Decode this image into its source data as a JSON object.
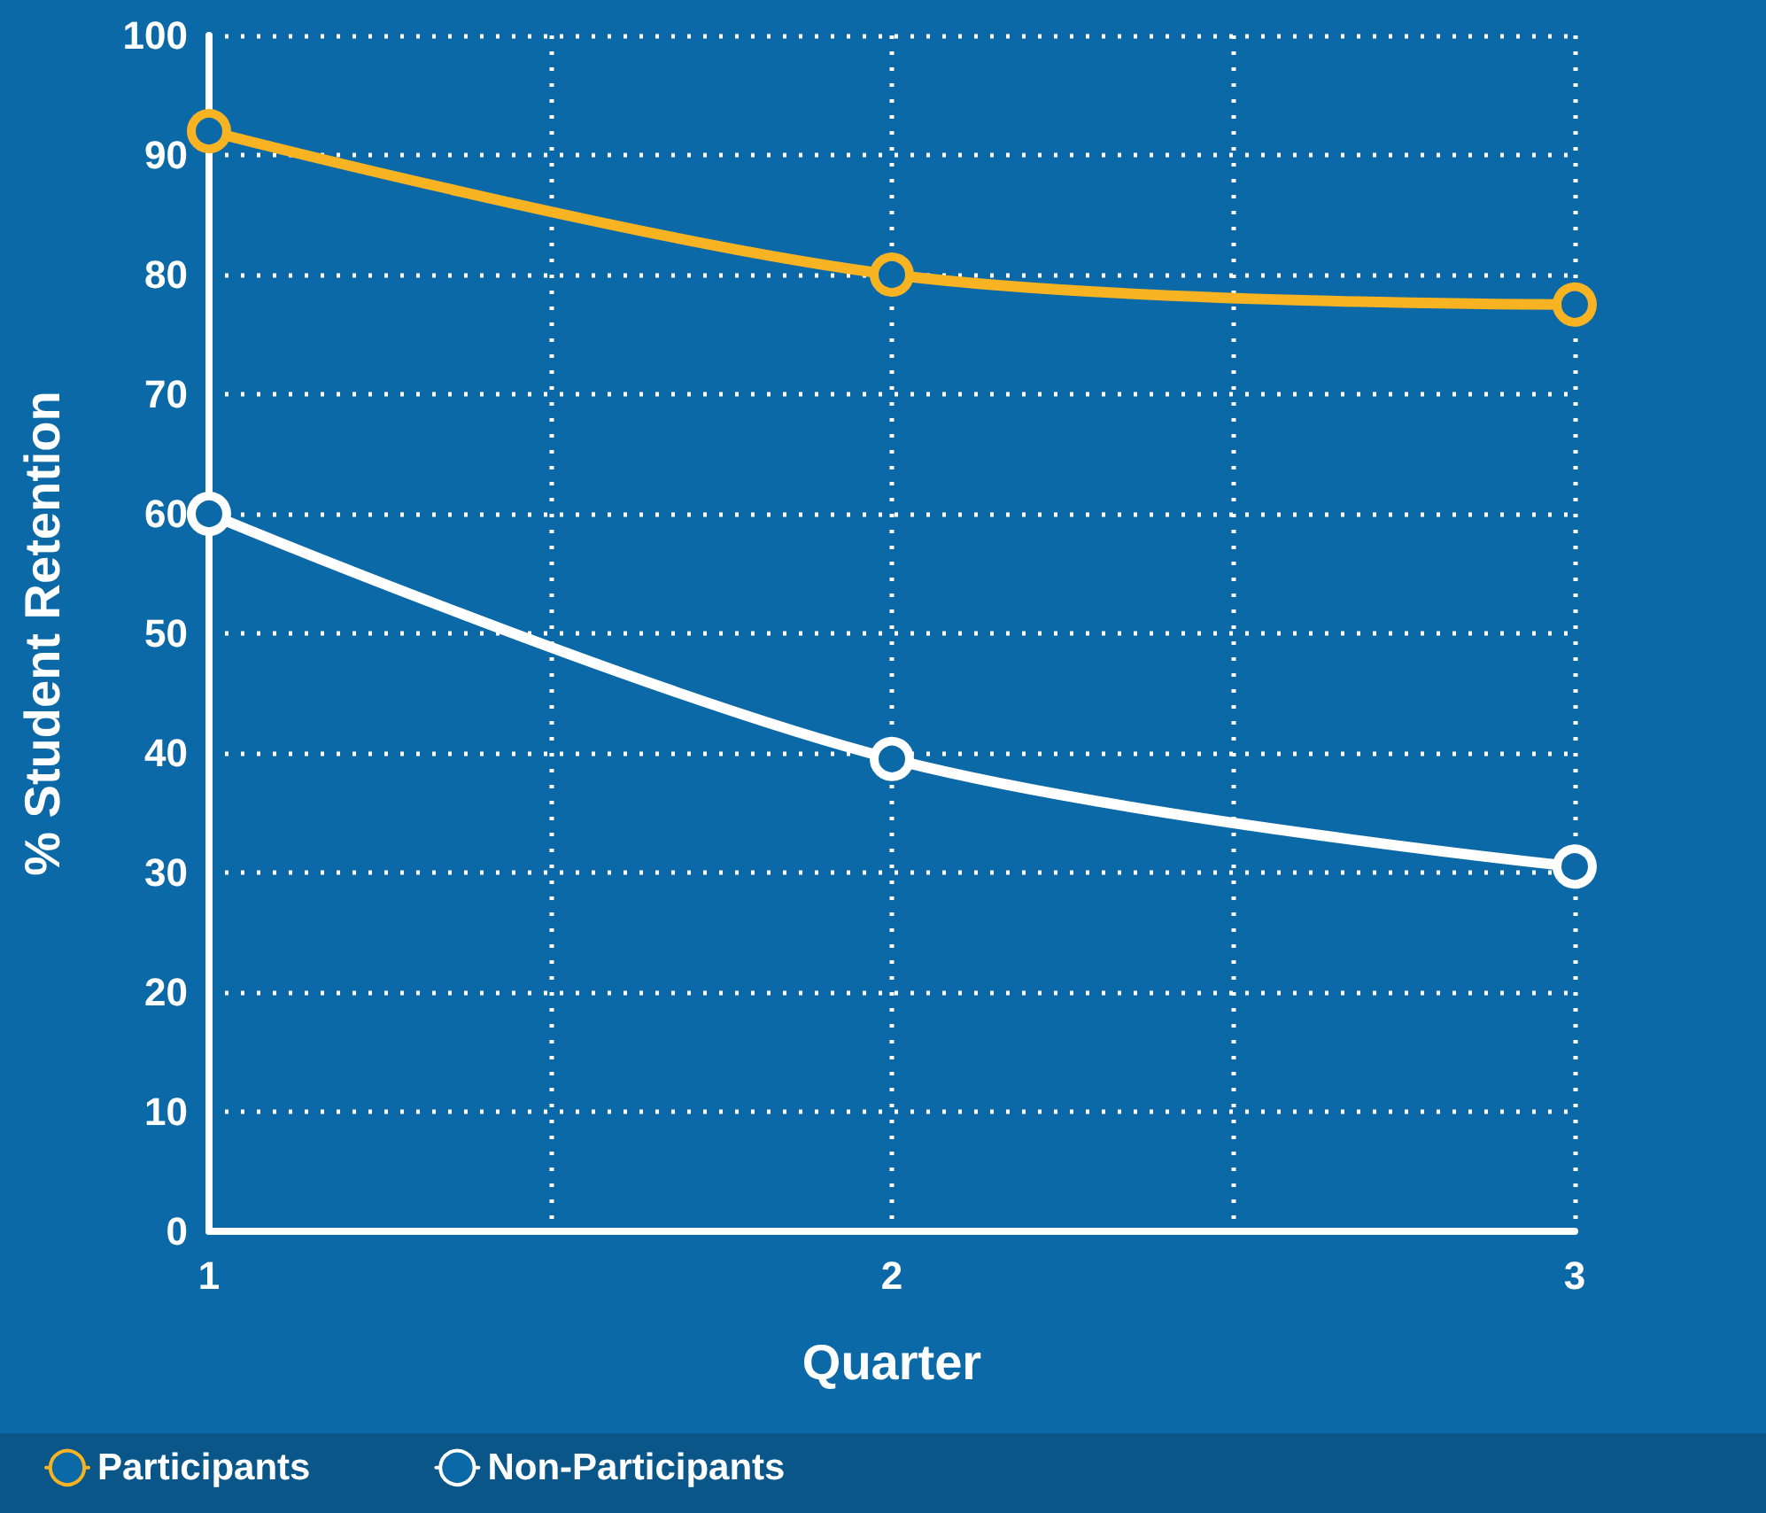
{
  "chart_data": {
    "type": "line",
    "xlabel": "Quarter",
    "ylabel": "% Student Retention",
    "x": [
      1,
      2,
      3
    ],
    "series": [
      {
        "name": "Participants",
        "color": "#f7b322",
        "values": [
          92,
          80,
          77.5
        ]
      },
      {
        "name": "Non-Participants",
        "color": "#ffffff",
        "values": [
          60,
          39.5,
          30.5
        ]
      }
    ],
    "xlim": [
      1,
      3
    ],
    "xticks": [
      1,
      {
        "value": 1.5,
        "label": null
      },
      2,
      {
        "value": 2.5,
        "label": null
      },
      3
    ],
    "ylim": [
      0,
      100
    ],
    "yticks": [
      0,
      10,
      20,
      30,
      40,
      50,
      60,
      70,
      80,
      90,
      100
    ],
    "grid": true,
    "legend": "bottom",
    "marker": "circle",
    "line_style": "solid"
  }
}
